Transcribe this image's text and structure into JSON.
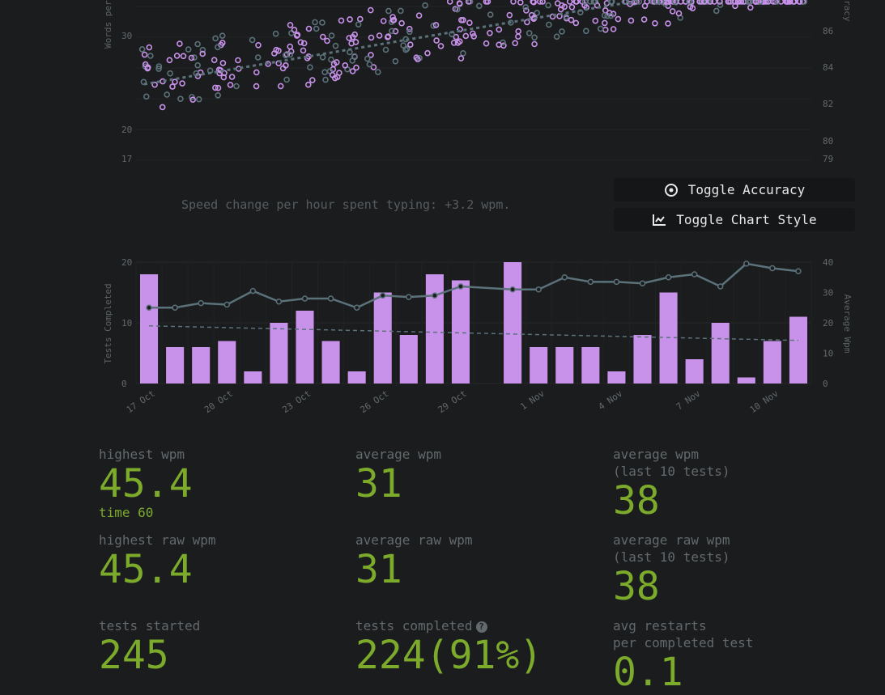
{
  "colors": {
    "background": "#1b1c1e",
    "accent_purple": "#c891ea",
    "secondary_gray": "#5b727a",
    "text_muted": "#626a6e",
    "stat_green": "#7cab2c"
  },
  "scatter_chart": {
    "y_axis_label_left": "Words per",
    "y_axis_label_right": "racy",
    "y_ticks_left": [
      "30",
      "20",
      "17"
    ],
    "y_ticks_right": [
      "86",
      "84",
      "82",
      "80",
      "79"
    ]
  },
  "speed_caption": "Speed change per hour spent typing: +3.2 wpm.",
  "buttons": {
    "toggle_accuracy": "Toggle Accuracy",
    "toggle_chart_style": "Toggle Chart Style"
  },
  "chart_data": {
    "type": "bar",
    "categories": [
      "17 Oct",
      "18 Oct",
      "19 Oct",
      "20 Oct",
      "21 Oct",
      "22 Oct",
      "23 Oct",
      "24 Oct",
      "25 Oct",
      "26 Oct",
      "27 Oct",
      "28 Oct",
      "29 Oct",
      "30 Oct",
      "31 Oct",
      "1 Nov",
      "2 Nov",
      "3 Nov",
      "4 Nov",
      "5 Nov",
      "6 Nov",
      "7 Nov",
      "8 Nov",
      "9 Nov",
      "10 Nov",
      "11 Nov"
    ],
    "x_tick_labels": [
      "17 Oct",
      "20 Oct",
      "23 Oct",
      "26 Oct",
      "29 Oct",
      "1 Nov",
      "4 Nov",
      "7 Nov",
      "10 Nov"
    ],
    "series": [
      {
        "name": "Tests Completed",
        "type": "bar",
        "axis": "left",
        "values": [
          18,
          6,
          6,
          7,
          2,
          10,
          12,
          7,
          2,
          15,
          8,
          18,
          17,
          0,
          20,
          6,
          6,
          6,
          2,
          8,
          15,
          4,
          10,
          1,
          7,
          11
        ]
      },
      {
        "name": "Average Wpm",
        "type": "line",
        "axis": "right",
        "values": [
          25,
          25,
          26.5,
          26,
          30.5,
          27,
          28,
          28,
          25,
          29,
          28.5,
          29,
          32,
          null,
          31,
          31,
          35,
          33.5,
          33.5,
          33,
          35,
          36,
          32,
          39.5,
          38,
          37
        ]
      },
      {
        "type": "trend",
        "axis": "left",
        "values": [
          9.5,
          9.5,
          9.4,
          9.3,
          9.2,
          9.1,
          9,
          8.9,
          8.8,
          8.7,
          8.6,
          8.5,
          8.4,
          8.3,
          8.2,
          8.1,
          8,
          7.9,
          7.8,
          7.7,
          7.6,
          7.5,
          7.4,
          7.3,
          7.2,
          7.1
        ]
      }
    ],
    "ylabel": "Tests Completed",
    "ylabel_right": "Average Wpm",
    "ylim": [
      0,
      20
    ],
    "ylim_right": [
      0,
      40
    ],
    "y_ticks": [
      "0",
      "10",
      "20"
    ],
    "y_ticks_right": [
      "0",
      "10",
      "20",
      "30",
      "40"
    ]
  },
  "stats": [
    {
      "label": "highest wpm",
      "value": "45.4",
      "sub": "time 60"
    },
    {
      "label": "average wpm",
      "value": "31"
    },
    {
      "label": "average wpm",
      "label2": "(last 10 tests)",
      "value": "38"
    },
    {
      "label": "highest raw wpm",
      "value": "45.4"
    },
    {
      "label": "average raw wpm",
      "value": "31"
    },
    {
      "label": "average raw wpm",
      "label2": "(last 10 tests)",
      "value": "38"
    },
    {
      "label": "tests started",
      "value": "245"
    },
    {
      "label": "tests completed",
      "value": "224(91%)",
      "help": "?"
    },
    {
      "label": "avg restarts",
      "label2": "per completed test",
      "value": "0.1"
    }
  ]
}
